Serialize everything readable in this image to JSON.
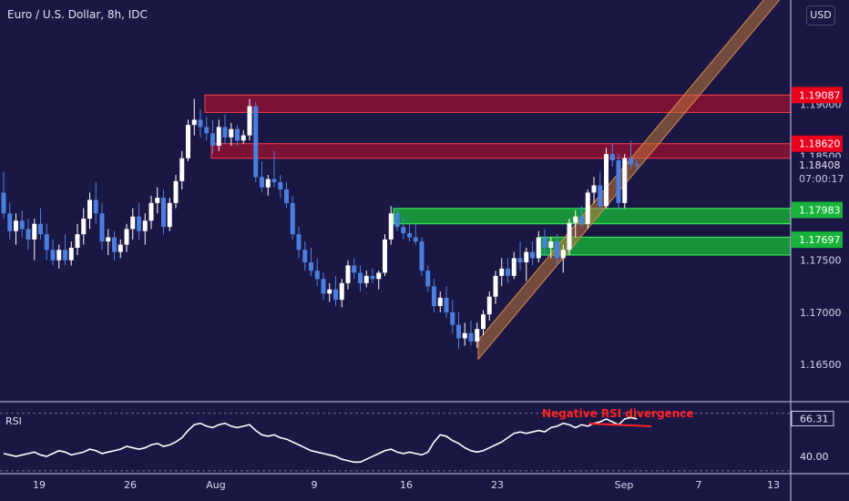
{
  "header": {
    "title": "Euro / U.S. Dollar, 8h, IDC",
    "currency": "USD"
  },
  "rsi_panel": {
    "label": "RSI",
    "annotation": "Negative RSI divergence"
  },
  "colors": {
    "background": "#1b1744",
    "bull": "#ffffff",
    "bear": "#4a7fe0",
    "resistance": "#c2102e",
    "support": "#1db33a",
    "channel": "#c0753a",
    "annotation": "#ff2222",
    "rsi_line": "#ffffff"
  },
  "chart_data": [
    {
      "type": "candlestick",
      "title": "Euro / U.S. Dollar, 8h, IDC",
      "x_tick_labels": [
        "19",
        "26",
        "Aug",
        "9",
        "16",
        "23",
        "Sep",
        "7",
        "13"
      ],
      "y_tick_labels": [
        "1.19000",
        "1.18500",
        "1.17500",
        "1.17000",
        "1.16500"
      ],
      "ylim": [
        1.1615,
        1.2
      ],
      "levels": [
        {
          "label": "1.19087",
          "value": 1.19087,
          "kind": "resistance"
        },
        {
          "label": "1.18620",
          "value": 1.1862,
          "kind": "resistance"
        },
        {
          "label": "1.17983",
          "value": 1.17983,
          "kind": "support"
        },
        {
          "label": "1.17697",
          "value": 1.17697,
          "kind": "support"
        }
      ],
      "current_price": {
        "label": "1.18408",
        "value": 1.18408,
        "countdown": "07:00:17"
      },
      "ohlc": [
        [
          1.1815,
          1.1835,
          1.179,
          1.1795
        ],
        [
          1.1795,
          1.1805,
          1.177,
          1.1778
        ],
        [
          1.1778,
          1.1795,
          1.1765,
          1.1788
        ],
        [
          1.1788,
          1.1798,
          1.1772,
          1.178
        ],
        [
          1.178,
          1.179,
          1.176,
          1.177
        ],
        [
          1.177,
          1.179,
          1.175,
          1.1785
        ],
        [
          1.1785,
          1.18,
          1.177,
          1.1775
        ],
        [
          1.1775,
          1.1785,
          1.175,
          1.176
        ],
        [
          1.176,
          1.177,
          1.1745,
          1.175
        ],
        [
          1.175,
          1.1765,
          1.1742,
          1.176
        ],
        [
          1.176,
          1.1775,
          1.1745,
          1.175
        ],
        [
          1.175,
          1.1768,
          1.1745,
          1.1762
        ],
        [
          1.1762,
          1.1785,
          1.1755,
          1.1775
        ],
        [
          1.1775,
          1.18,
          1.1765,
          1.179
        ],
        [
          1.179,
          1.1815,
          1.178,
          1.1808
        ],
        [
          1.1808,
          1.1825,
          1.1785,
          1.1795
        ],
        [
          1.1795,
          1.1805,
          1.176,
          1.1768
        ],
        [
          1.1768,
          1.178,
          1.1755,
          1.1772
        ],
        [
          1.1772,
          1.1778,
          1.175,
          1.1758
        ],
        [
          1.1758,
          1.177,
          1.1752,
          1.1765
        ],
        [
          1.1765,
          1.1785,
          1.1758,
          1.178
        ],
        [
          1.178,
          1.18,
          1.177,
          1.1792
        ],
        [
          1.1792,
          1.1805,
          1.177,
          1.1778
        ],
        [
          1.1778,
          1.1795,
          1.1765,
          1.1788
        ],
        [
          1.1788,
          1.1812,
          1.178,
          1.1805
        ],
        [
          1.1805,
          1.182,
          1.1795,
          1.181
        ],
        [
          1.181,
          1.1818,
          1.1775,
          1.1782
        ],
        [
          1.1782,
          1.181,
          1.1778,
          1.1805
        ],
        [
          1.1805,
          1.1832,
          1.18,
          1.1826
        ],
        [
          1.1826,
          1.1855,
          1.1818,
          1.1848
        ],
        [
          1.1848,
          1.1885,
          1.1845,
          1.188
        ],
        [
          1.188,
          1.1905,
          1.187,
          1.1885
        ],
        [
          1.1885,
          1.1895,
          1.1868,
          1.1878
        ],
        [
          1.1878,
          1.1888,
          1.1865,
          1.1872
        ],
        [
          1.1872,
          1.1885,
          1.1852,
          1.186
        ],
        [
          1.186,
          1.1885,
          1.1855,
          1.1878
        ],
        [
          1.1878,
          1.189,
          1.1862,
          1.1868
        ],
        [
          1.1868,
          1.1882,
          1.186,
          1.1876
        ],
        [
          1.1876,
          1.188,
          1.186,
          1.1865
        ],
        [
          1.1865,
          1.1875,
          1.1862,
          1.187
        ],
        [
          1.187,
          1.1905,
          1.1865,
          1.1898
        ],
        [
          1.1898,
          1.1902,
          1.1825,
          1.183
        ],
        [
          1.183,
          1.1845,
          1.1815,
          1.182
        ],
        [
          1.182,
          1.1832,
          1.1812,
          1.1828
        ],
        [
          1.1828,
          1.1855,
          1.182,
          1.1825
        ],
        [
          1.1825,
          1.1832,
          1.181,
          1.1818
        ],
        [
          1.1818,
          1.1825,
          1.18,
          1.1805
        ],
        [
          1.1805,
          1.1812,
          1.177,
          1.1775
        ],
        [
          1.1775,
          1.1782,
          1.1752,
          1.176
        ],
        [
          1.176,
          1.1768,
          1.174,
          1.1748
        ],
        [
          1.1748,
          1.1762,
          1.1735,
          1.174
        ],
        [
          1.174,
          1.1752,
          1.1725,
          1.1732
        ],
        [
          1.1732,
          1.1738,
          1.1712,
          1.1718
        ],
        [
          1.1718,
          1.1728,
          1.171,
          1.1722
        ],
        [
          1.1722,
          1.1735,
          1.1706,
          1.1712
        ],
        [
          1.1712,
          1.1732,
          1.1705,
          1.1728
        ],
        [
          1.1728,
          1.175,
          1.1722,
          1.1745
        ],
        [
          1.1745,
          1.1752,
          1.1732,
          1.1738
        ],
        [
          1.1738,
          1.1745,
          1.172,
          1.1728
        ],
        [
          1.1728,
          1.174,
          1.1724,
          1.1735
        ],
        [
          1.1735,
          1.1742,
          1.1728,
          1.1732
        ],
        [
          1.1732,
          1.174,
          1.1722,
          1.1738
        ],
        [
          1.1738,
          1.1775,
          1.1735,
          1.177
        ],
        [
          1.177,
          1.1802,
          1.1765,
          1.1795
        ],
        [
          1.1795,
          1.18,
          1.1778,
          1.1782
        ],
        [
          1.1782,
          1.1792,
          1.177,
          1.1776
        ],
        [
          1.1776,
          1.1786,
          1.1768,
          1.1772
        ],
        [
          1.1772,
          1.1785,
          1.1765,
          1.1768
        ],
        [
          1.1768,
          1.1772,
          1.1735,
          1.174
        ],
        [
          1.174,
          1.1745,
          1.172,
          1.1725
        ],
        [
          1.1725,
          1.1732,
          1.17,
          1.1706
        ],
        [
          1.1706,
          1.172,
          1.17,
          1.1714
        ],
        [
          1.1714,
          1.1725,
          1.1695,
          1.17
        ],
        [
          1.17,
          1.1712,
          1.168,
          1.1688
        ],
        [
          1.1688,
          1.17,
          1.1665,
          1.1675
        ],
        [
          1.1675,
          1.169,
          1.1668,
          1.168
        ],
        [
          1.168,
          1.1692,
          1.1668,
          1.1672
        ],
        [
          1.1672,
          1.169,
          1.1666,
          1.1684
        ],
        [
          1.1684,
          1.1702,
          1.1678,
          1.1698
        ],
        [
          1.1698,
          1.172,
          1.1692,
          1.1715
        ],
        [
          1.1715,
          1.174,
          1.1708,
          1.1735
        ],
        [
          1.1735,
          1.1752,
          1.1725,
          1.1742
        ],
        [
          1.1742,
          1.1752,
          1.1728,
          1.1735
        ],
        [
          1.1735,
          1.1758,
          1.1732,
          1.1752
        ],
        [
          1.1752,
          1.1768,
          1.174,
          1.1748
        ],
        [
          1.1748,
          1.1762,
          1.173,
          1.1758
        ],
        [
          1.1758,
          1.1768,
          1.1745,
          1.1752
        ],
        [
          1.1752,
          1.1778,
          1.1748,
          1.1772
        ],
        [
          1.1772,
          1.178,
          1.1755,
          1.1762
        ],
        [
          1.1762,
          1.1772,
          1.1752,
          1.1768
        ],
        [
          1.1768,
          1.1775,
          1.1745,
          1.1752
        ],
        [
          1.1752,
          1.1765,
          1.1738,
          1.176
        ],
        [
          1.176,
          1.179,
          1.1755,
          1.1786
        ],
        [
          1.1786,
          1.1798,
          1.1772,
          1.1792
        ],
        [
          1.1792,
          1.1802,
          1.1782,
          1.1785
        ],
        [
          1.1785,
          1.1818,
          1.178,
          1.1815
        ],
        [
          1.1815,
          1.183,
          1.1805,
          1.1822
        ],
        [
          1.1822,
          1.1835,
          1.1798,
          1.1802
        ],
        [
          1.1802,
          1.1858,
          1.18,
          1.1852
        ],
        [
          1.1852,
          1.1862,
          1.184,
          1.1846
        ],
        [
          1.1846,
          1.1852,
          1.1798,
          1.1805
        ],
        [
          1.1805,
          1.1852,
          1.18,
          1.1848
        ],
        [
          1.1848,
          1.1865,
          1.1838,
          1.1842
        ],
        [
          1.1842,
          1.1846,
          1.1836,
          1.1841
        ]
      ],
      "channel": {
        "lower_start": 1.1655,
        "lower_end": 1.2015,
        "upper_offset": 0.0018
      }
    },
    {
      "type": "line",
      "title": "RSI",
      "y_tick_labels": [
        "66.31",
        "40.00"
      ],
      "ylim": [
        28,
        78
      ],
      "bands": [
        70,
        30
      ],
      "current_value": 66.31,
      "series": [
        {
          "values": [
            42,
            41,
            40,
            41,
            42,
            43,
            41,
            40,
            42,
            44,
            43,
            41,
            42,
            43,
            45,
            44,
            42,
            43,
            44,
            45,
            47,
            46,
            45,
            46,
            48,
            49,
            47,
            48,
            50,
            53,
            58,
            62,
            63,
            61,
            60,
            62,
            63,
            61,
            60,
            61,
            62,
            58,
            55,
            54,
            55,
            53,
            52,
            50,
            48,
            46,
            44,
            43,
            42,
            41,
            40,
            38,
            37,
            36,
            36,
            38,
            40,
            42,
            44,
            45,
            43,
            42,
            43,
            42,
            41,
            43,
            50,
            55,
            54,
            51,
            49,
            46,
            44,
            43,
            44,
            46,
            48,
            50,
            53,
            56,
            57,
            56,
            57,
            58,
            57,
            60,
            61,
            63,
            62,
            60,
            62,
            61,
            63,
            64,
            66,
            64,
            62,
            66,
            67,
            66
          ]
        }
      ]
    }
  ]
}
